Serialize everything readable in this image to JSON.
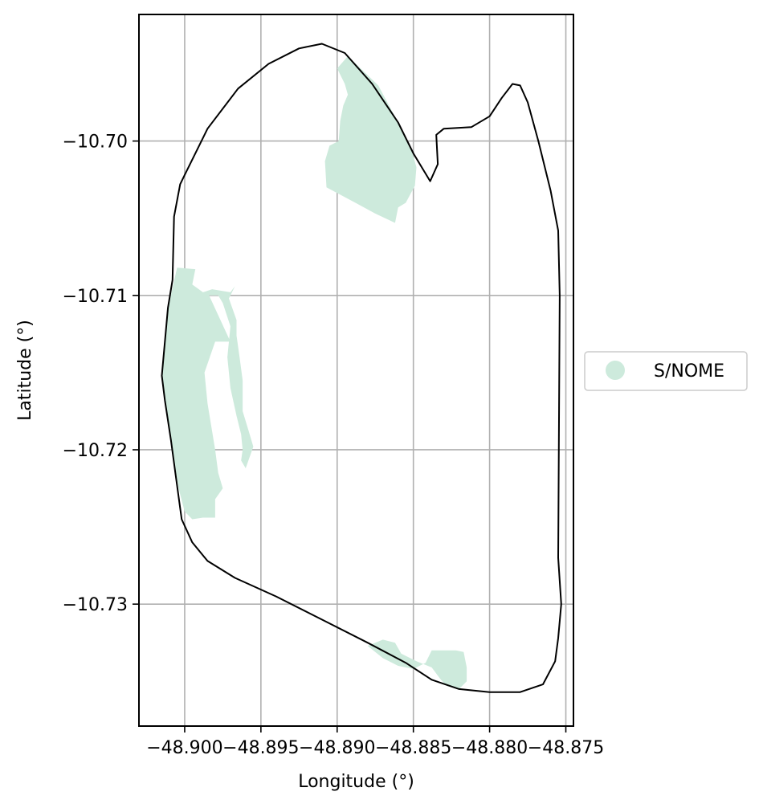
{
  "chart_data": {
    "type": "map",
    "xlabel": "Longitude (°)",
    "ylabel": "Latitude (°)",
    "xlim": [
      -48.903,
      -48.8745
    ],
    "ylim": [
      -10.7379,
      -10.6918
    ],
    "x_ticks": [
      {
        "value": -48.9,
        "label": "−48.900"
      },
      {
        "value": -48.895,
        "label": "−48.895"
      },
      {
        "value": -48.89,
        "label": "−48.890"
      },
      {
        "value": -48.885,
        "label": "−48.885"
      },
      {
        "value": -48.88,
        "label": "−48.880"
      },
      {
        "value": -48.875,
        "label": "−48.875"
      }
    ],
    "y_ticks": [
      {
        "value": -10.7,
        "label": "−10.70"
      },
      {
        "value": -10.71,
        "label": "−10.71"
      },
      {
        "value": -10.72,
        "label": "−10.72"
      },
      {
        "value": -10.73,
        "label": "−10.73"
      }
    ],
    "grid": true,
    "boundary": {
      "stroke": "#000000",
      "coords": [
        [
          -48.891,
          -10.6937
        ],
        [
          -48.8925,
          -10.694
        ],
        [
          -48.8945,
          -10.695
        ],
        [
          -48.8965,
          -10.6966
        ],
        [
          -48.8985,
          -10.6992
        ],
        [
          -48.9,
          -10.7022
        ],
        [
          -48.9003,
          -10.7028
        ],
        [
          -48.9007,
          -10.7049
        ],
        [
          -48.9008,
          -10.709
        ],
        [
          -48.9011,
          -10.7108
        ],
        [
          -48.9015,
          -10.7152
        ],
        [
          -48.9013,
          -10.7168
        ],
        [
          -48.9009,
          -10.7194
        ],
        [
          -48.9006,
          -10.7216
        ],
        [
          -48.9002,
          -10.7245
        ],
        [
          -48.8995,
          -10.726
        ],
        [
          -48.8985,
          -10.7272
        ],
        [
          -48.8967,
          -10.7283
        ],
        [
          -48.894,
          -10.7295
        ],
        [
          -48.891,
          -10.731
        ],
        [
          -48.888,
          -10.7325
        ],
        [
          -48.8855,
          -10.7338
        ],
        [
          -48.8838,
          -10.7349
        ],
        [
          -48.882,
          -10.7355
        ],
        [
          -48.88,
          -10.7357
        ],
        [
          -48.878,
          -10.7357
        ],
        [
          -48.8765,
          -10.7352
        ],
        [
          -48.8757,
          -10.7337
        ],
        [
          -48.8755,
          -10.7322
        ],
        [
          -48.8753,
          -10.73
        ],
        [
          -48.8755,
          -10.727
        ],
        [
          -48.8754,
          -10.71
        ],
        [
          -48.8755,
          -10.7058
        ],
        [
          -48.876,
          -10.7032
        ],
        [
          -48.8768,
          -10.7
        ],
        [
          -48.8775,
          -10.6975
        ],
        [
          -48.878,
          -10.6964
        ],
        [
          -48.8785,
          -10.6963
        ],
        [
          -48.8792,
          -10.6972
        ],
        [
          -48.88,
          -10.6984
        ],
        [
          -48.8812,
          -10.6991
        ],
        [
          -48.883,
          -10.6992
        ],
        [
          -48.8835,
          -10.6996
        ],
        [
          -48.8834,
          -10.7015
        ],
        [
          -48.8839,
          -10.7026
        ],
        [
          -48.885,
          -10.7008
        ],
        [
          -48.886,
          -10.6988
        ],
        [
          -48.8877,
          -10.6963
        ],
        [
          -48.8895,
          -10.6943
        ],
        [
          -48.891,
          -10.6937
        ]
      ]
    },
    "series": [
      {
        "name": "S/NOME",
        "color": "#cdeadc",
        "polygons": [
          [
            [
              -48.8893,
              -10.6945
            ],
            [
              -48.8873,
              -10.6964
            ],
            [
              -48.886,
              -10.6988
            ],
            [
              -48.8852,
              -10.7003
            ],
            [
              -48.8848,
              -10.7017
            ],
            [
              -48.8849,
              -10.7029
            ],
            [
              -48.8855,
              -10.704
            ],
            [
              -48.886,
              -10.7043
            ],
            [
              -48.8862,
              -10.7053
            ],
            [
              -48.8875,
              -10.7047
            ],
            [
              -48.8888,
              -10.704
            ],
            [
              -48.8907,
              -10.703
            ],
            [
              -48.8908,
              -10.7013
            ],
            [
              -48.8905,
              -10.7003
            ],
            [
              -48.8899,
              -10.7
            ],
            [
              -48.8898,
              -10.6987
            ],
            [
              -48.8896,
              -10.6977
            ],
            [
              -48.8893,
              -10.697
            ],
            [
              -48.8895,
              -10.6963
            ],
            [
              -48.89,
              -10.6953
            ],
            [
              -48.8893,
              -10.6945
            ]
          ],
          [
            [
              -48.9005,
              -10.7082
            ],
            [
              -48.8993,
              -10.7083
            ],
            [
              -48.8995,
              -10.7093
            ],
            [
              -48.8988,
              -10.7098
            ],
            [
              -48.8982,
              -10.7096
            ],
            [
              -48.897,
              -10.7098
            ],
            [
              -48.8967,
              -10.7094
            ],
            [
              -48.8971,
              -10.7102
            ],
            [
              -48.8966,
              -10.7116
            ],
            [
              -48.8966,
              -10.7126
            ],
            [
              -48.8964,
              -10.714
            ],
            [
              -48.8962,
              -10.7155
            ],
            [
              -48.8962,
              -10.7175
            ],
            [
              -48.8958,
              -10.7188
            ],
            [
              -48.8955,
              -10.7198
            ],
            [
              -48.896,
              -10.7212
            ],
            [
              -48.8963,
              -10.7207
            ],
            [
              -48.8962,
              -10.72
            ],
            [
              -48.8963,
              -10.719
            ],
            [
              -48.8966,
              -10.7178
            ],
            [
              -48.897,
              -10.716
            ],
            [
              -48.8972,
              -10.714
            ],
            [
              -48.897,
              -10.712
            ],
            [
              -48.8975,
              -10.7105
            ],
            [
              -48.8978,
              -10.71
            ],
            [
              -48.8984,
              -10.71
            ],
            [
              -48.897,
              -10.713
            ],
            [
              -48.898,
              -10.713
            ],
            [
              -48.8987,
              -10.715
            ],
            [
              -48.8985,
              -10.717
            ],
            [
              -48.898,
              -10.72
            ],
            [
              -48.8978,
              -10.7215
            ],
            [
              -48.8975,
              -10.7225
            ],
            [
              -48.898,
              -10.7232
            ],
            [
              -48.898,
              -10.7244
            ],
            [
              -48.8988,
              -10.7244
            ],
            [
              -48.8995,
              -10.7245
            ],
            [
              -48.9,
              -10.724
            ],
            [
              -48.9004,
              -10.7225
            ],
            [
              -48.9006,
              -10.7213
            ],
            [
              -48.9009,
              -10.7194
            ],
            [
              -48.9013,
              -10.7168
            ],
            [
              -48.9015,
              -10.7152
            ],
            [
              -48.9011,
              -10.7108
            ],
            [
              -48.9008,
              -10.7095
            ],
            [
              -48.9005,
              -10.7082
            ]
          ],
          [
            [
              -48.888,
              -10.7327
            ],
            [
              -48.887,
              -10.7323
            ],
            [
              -48.8862,
              -10.7325
            ],
            [
              -48.8858,
              -10.7332
            ],
            [
              -48.8848,
              -10.7337
            ],
            [
              -48.8838,
              -10.7341
            ],
            [
              -48.8832,
              -10.7349
            ],
            [
              -48.8828,
              -10.7353
            ],
            [
              -48.882,
              -10.7355
            ],
            [
              -48.8815,
              -10.735
            ],
            [
              -48.8815,
              -10.7341
            ],
            [
              -48.8817,
              -10.7331
            ],
            [
              -48.8822,
              -10.733
            ],
            [
              -48.8832,
              -10.733
            ],
            [
              -48.8838,
              -10.733
            ],
            [
              -48.8842,
              -10.7338
            ],
            [
              -48.885,
              -10.7342
            ],
            [
              -48.886,
              -10.734
            ],
            [
              -48.887,
              -10.7335
            ],
            [
              -48.888,
              -10.7327
            ]
          ]
        ]
      }
    ],
    "legend": {
      "placement": "center-right-outside",
      "entries": [
        {
          "label": "S/NOME",
          "color": "#cdeadc"
        }
      ]
    }
  }
}
